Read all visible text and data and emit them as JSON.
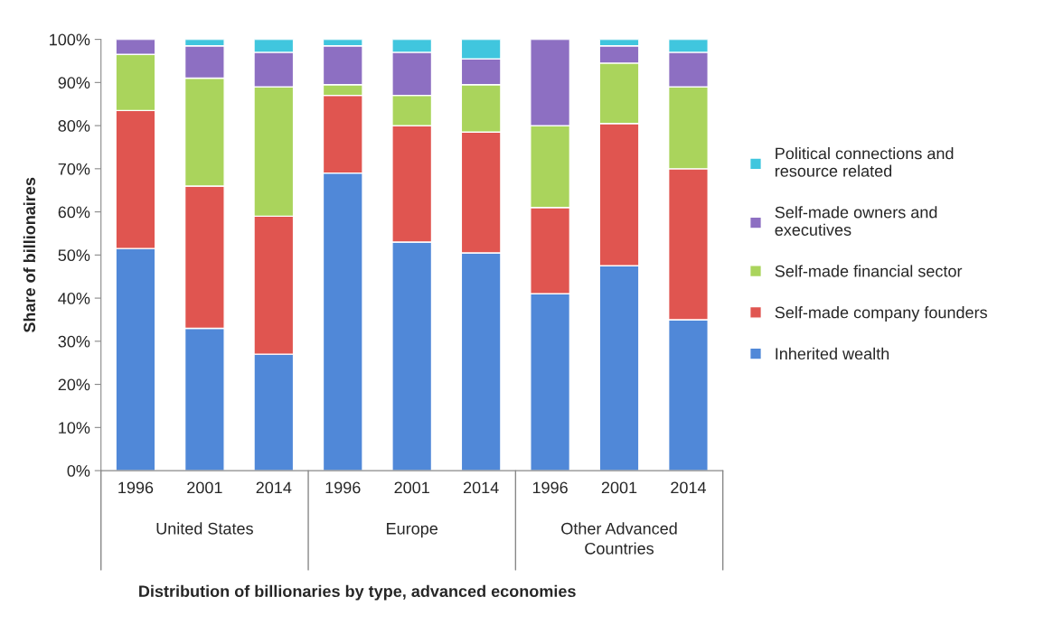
{
  "chart_data": {
    "type": "bar",
    "stacked": true,
    "title": "Distribution of billionaries by type, advanced economies",
    "ylabel": "Share of billionaires",
    "categories": [
      "1996",
      "2001",
      "2014",
      "1996",
      "2001",
      "2014",
      "1996",
      "2001",
      "2014"
    ],
    "annotations": [
      "United States",
      "Europe",
      "Other Advanced\nCountries"
    ],
    "series": [
      {
        "name": "Inherited wealth",
        "color": "#5088d8",
        "values": [
          51.5,
          33,
          27,
          69,
          53,
          50.5,
          41,
          47.5,
          35
        ]
      },
      {
        "name": "Self-made company founders",
        "color": "#e05550",
        "values": [
          32,
          33,
          32,
          18,
          27,
          28,
          20,
          33,
          35
        ]
      },
      {
        "name": "Self-made financial sector",
        "color": "#aad45c",
        "values": [
          13,
          25,
          30,
          2.5,
          7,
          11,
          19,
          14,
          19
        ]
      },
      {
        "name": "Self-made owners and\nexecutives",
        "color": "#8d6fc2",
        "values": [
          3.5,
          7.5,
          8,
          9,
          10,
          6,
          20,
          4,
          8
        ]
      },
      {
        "name": "Political connections and\nresource related",
        "color": "#40c6de",
        "values": [
          null,
          1.5,
          3,
          1.5,
          3,
          4.5,
          null,
          1.5,
          3
        ]
      }
    ],
    "ylim": [
      0,
      100
    ],
    "yticks": [
      {
        "value": 0,
        "label": "0%"
      },
      {
        "value": 10,
        "label": "10%"
      },
      {
        "value": 20,
        "label": "20%"
      },
      {
        "value": 30,
        "label": "30%"
      },
      {
        "value": 40,
        "label": "40%"
      },
      {
        "value": 50,
        "label": "50%"
      },
      {
        "value": 60,
        "label": "60%"
      },
      {
        "value": 70,
        "label": "70%"
      },
      {
        "value": 80,
        "label": "80%"
      },
      {
        "value": 90,
        "label": "90%"
      },
      {
        "value": 100,
        "label": "100%"
      }
    ],
    "legend": "right",
    "grid": false
  }
}
